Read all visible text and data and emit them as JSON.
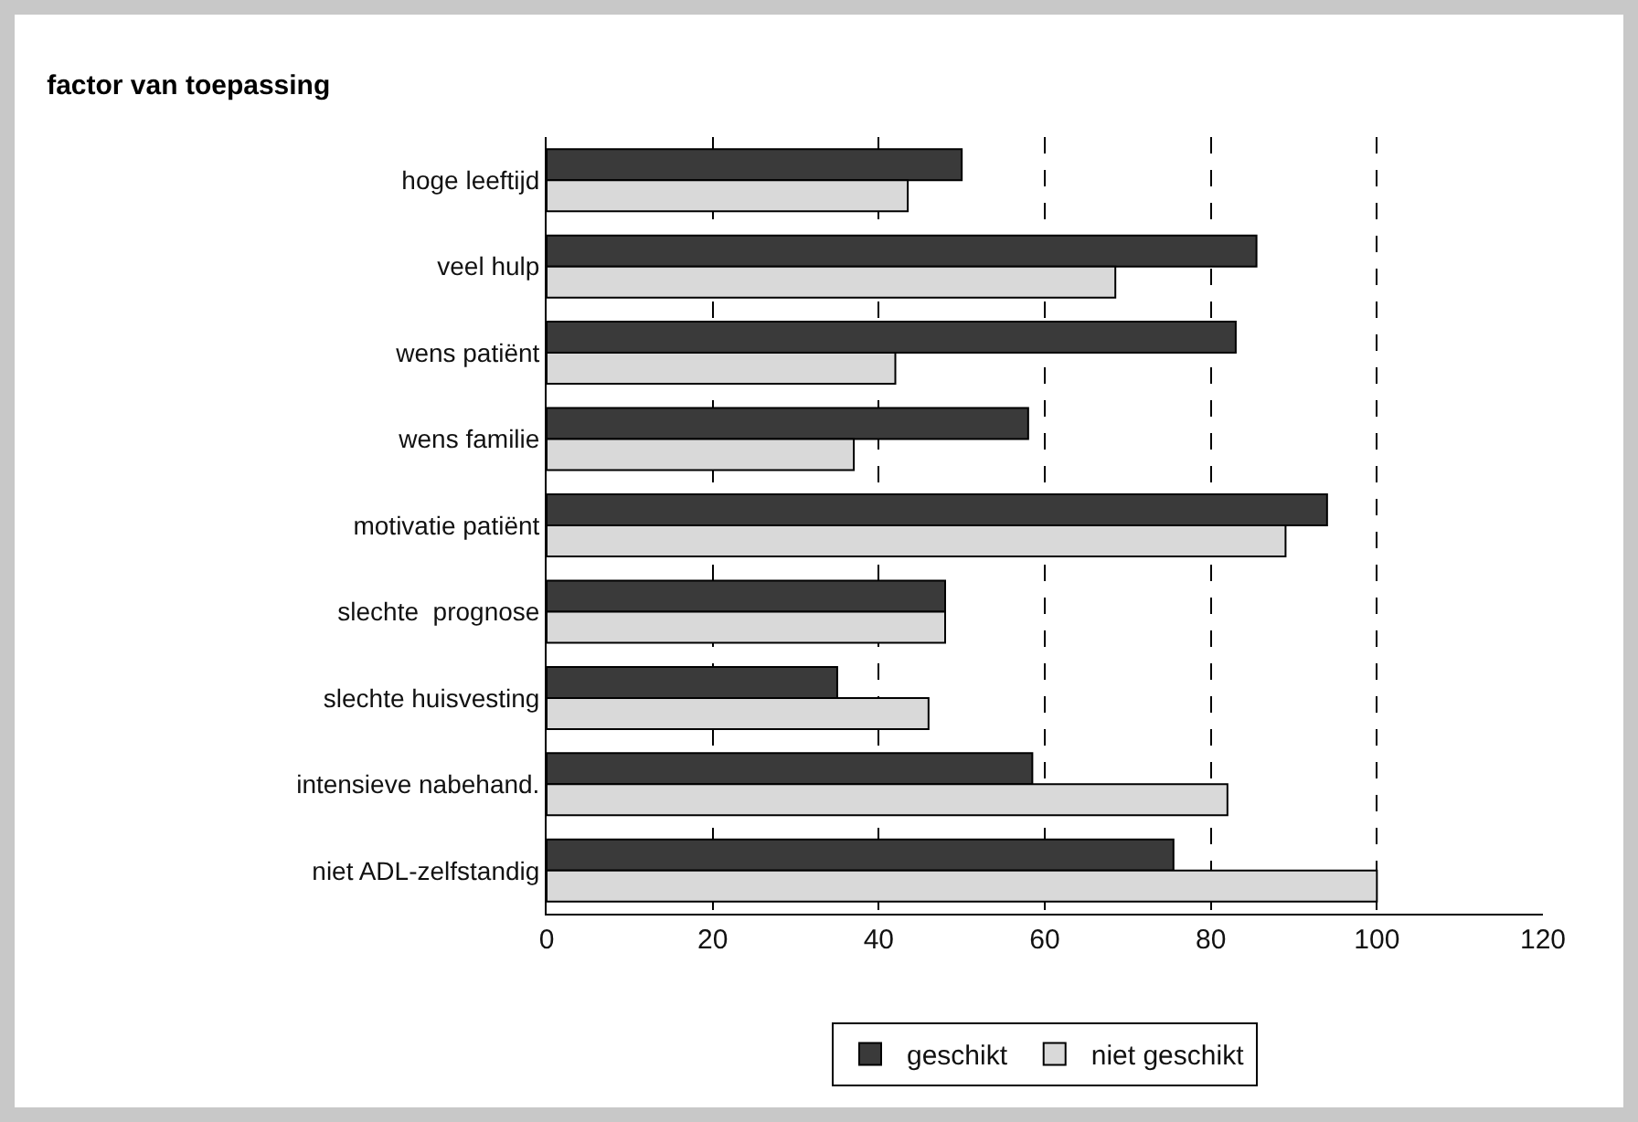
{
  "chart_data": {
    "type": "bar",
    "orientation": "horizontal",
    "title": "factor van toepassing",
    "categories": [
      "hoge leeftijd",
      "veel hulp",
      "wens patiënt",
      "wens familie",
      "motivatie patiënt",
      "slechte  prognose",
      "slechte huisvesting",
      "intensieve nabehand.",
      "niet ADL-zelfstandig"
    ],
    "series": [
      {
        "name": "geschikt",
        "color": "#3a3a3a",
        "values": [
          50,
          85.5,
          83,
          58,
          94,
          48,
          35,
          58.5,
          75.5
        ]
      },
      {
        "name": "niet geschikt",
        "color": "#d9d9d9",
        "values": [
          43.5,
          68.5,
          42,
          37,
          89,
          48,
          46,
          82,
          100
        ]
      }
    ],
    "xlim": [
      0,
      120
    ],
    "xticks": [
      0,
      20,
      40,
      60,
      80,
      100,
      120
    ],
    "grid": "x",
    "legend": "bottom"
  }
}
